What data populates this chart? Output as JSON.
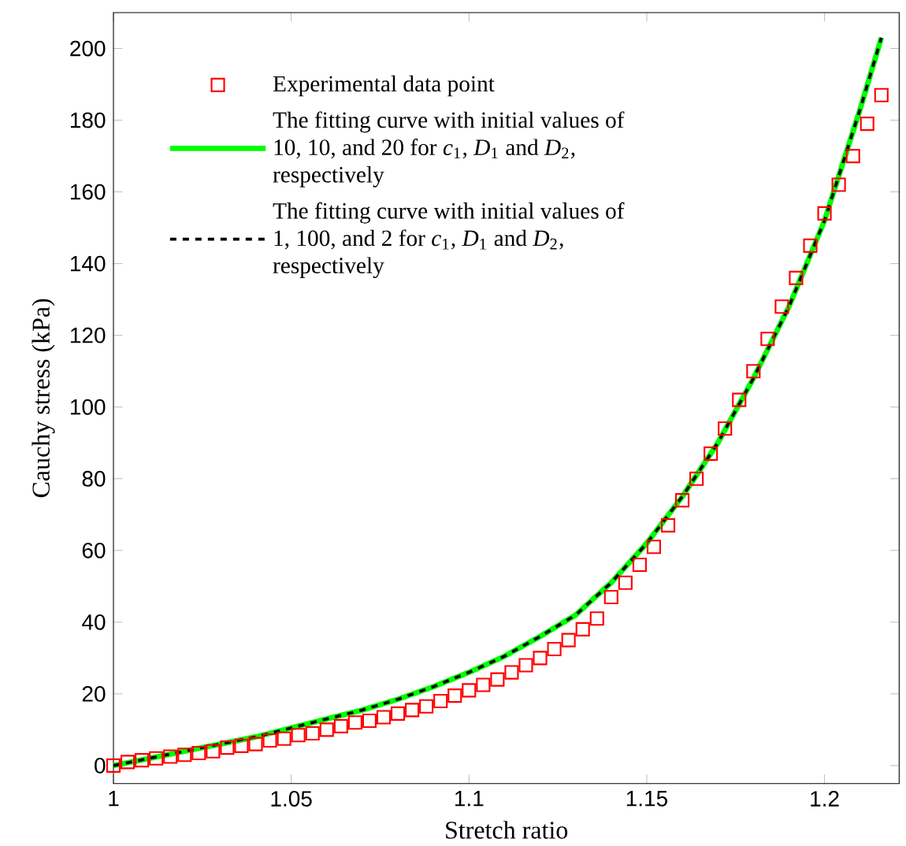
{
  "chart_data": {
    "type": "line",
    "xlabel": "Stretch ratio",
    "ylabel": "Cauchy stress (kPa)",
    "xlim": [
      1,
      1.221
    ],
    "ylim": [
      -5,
      210
    ],
    "xticks": [
      1,
      1.05,
      1.1,
      1.15,
      1.2
    ],
    "yticks": [
      0,
      20,
      40,
      60,
      80,
      100,
      120,
      140,
      160,
      180,
      200
    ],
    "legend": "top left",
    "grid": false,
    "series": [
      {
        "name": "Experimental data point",
        "type": "scatter",
        "marker": "square",
        "color": "#ff0000",
        "x": [
          1.0,
          1.004,
          1.008,
          1.012,
          1.016,
          1.02,
          1.024,
          1.028,
          1.032,
          1.036,
          1.04,
          1.044,
          1.048,
          1.052,
          1.056,
          1.06,
          1.064,
          1.068,
          1.072,
          1.076,
          1.08,
          1.084,
          1.088,
          1.092,
          1.096,
          1.1,
          1.104,
          1.108,
          1.112,
          1.116,
          1.12,
          1.124,
          1.128,
          1.132,
          1.136,
          1.14,
          1.144,
          1.148,
          1.152,
          1.156,
          1.16,
          1.164,
          1.168,
          1.172,
          1.176,
          1.18,
          1.184,
          1.188,
          1.192,
          1.196,
          1.2,
          1.204,
          1.208,
          1.212,
          1.216
        ],
        "values": [
          0,
          1,
          1.5,
          2,
          2.5,
          3,
          3.5,
          4,
          5,
          5.5,
          6,
          7,
          7.5,
          8.5,
          9,
          10,
          11,
          12,
          12.5,
          13.5,
          14.5,
          15.5,
          16.5,
          18,
          19.5,
          21,
          22.5,
          24,
          26,
          28,
          30,
          32.5,
          35,
          38,
          41,
          47,
          51,
          56,
          61,
          67,
          74,
          80,
          87,
          94,
          102,
          110,
          119,
          128,
          136,
          145,
          154,
          162,
          170,
          179,
          187
        ]
      },
      {
        "name": "The fitting curve with initial values of 10, 10, and 20 for *c*$_{1}$, *D*$_{1}$ and *D*$_{2}$, respectively",
        "color": "#00ff00",
        "line_style": "solid",
        "x": [
          1.0,
          1.01,
          1.02,
          1.03,
          1.04,
          1.05,
          1.06,
          1.07,
          1.08,
          1.09,
          1.1,
          1.11,
          1.12,
          1.13,
          1.14,
          1.15,
          1.16,
          1.17,
          1.18,
          1.19,
          1.2,
          1.21,
          1.216
        ],
        "values": [
          0,
          2,
          4,
          6,
          8,
          10.5,
          13,
          15.5,
          18.5,
          22,
          26,
          30.5,
          36,
          42,
          51,
          62,
          75,
          90,
          108,
          128,
          152,
          183,
          203
        ]
      },
      {
        "name": "The fitting curve with initial values of 1, 100, and 2 for *c*$_{1}$, *D*$_{1}$ and *D*$_{2}$, respectively",
        "color": "#000000",
        "line_style": "dashed",
        "x": [
          1.0,
          1.01,
          1.02,
          1.03,
          1.04,
          1.05,
          1.06,
          1.07,
          1.08,
          1.09,
          1.1,
          1.11,
          1.12,
          1.13,
          1.14,
          1.15,
          1.16,
          1.17,
          1.18,
          1.19,
          1.2,
          1.21,
          1.216
        ],
        "values": [
          0,
          2,
          4,
          6,
          8,
          10.5,
          13,
          15.5,
          18.5,
          22,
          26,
          30.5,
          36,
          42,
          51,
          62,
          75,
          90,
          108,
          128,
          152,
          183,
          203
        ]
      }
    ]
  }
}
